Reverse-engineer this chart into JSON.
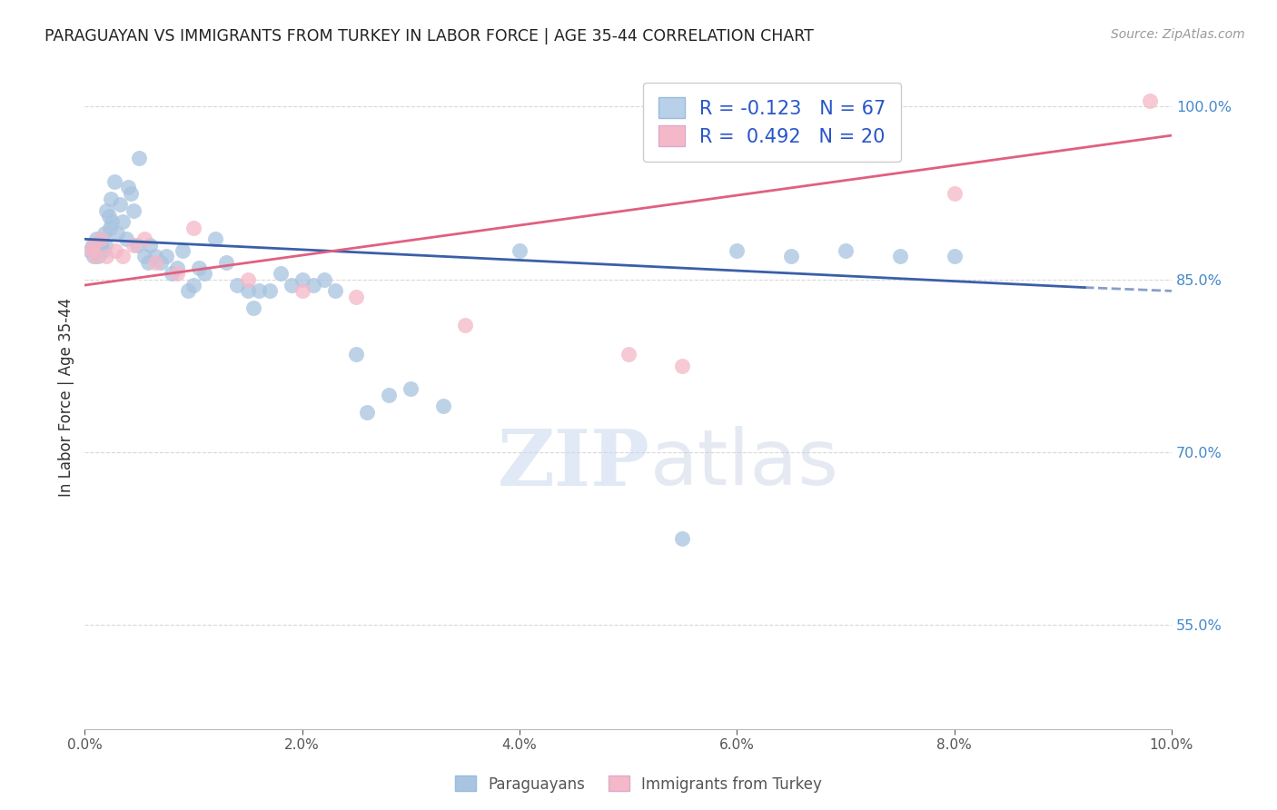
{
  "title": "PARAGUAYAN VS IMMIGRANTS FROM TURKEY IN LABOR FORCE | AGE 35-44 CORRELATION CHART",
  "source": "Source: ZipAtlas.com",
  "ylabel": "In Labor Force | Age 35-44",
  "x_min": 0.0,
  "x_max": 10.0,
  "y_min": 46.0,
  "y_max": 103.5,
  "y_ticks": [
    55.0,
    70.0,
    85.0,
    100.0
  ],
  "x_ticks": [
    0.0,
    2.0,
    4.0,
    6.0,
    8.0,
    10.0
  ],
  "paraguayan_color": "#a8c4e0",
  "turkey_color": "#f4b8c8",
  "blue_line_color": "#3a5fa8",
  "pink_line_color": "#e06080",
  "legend_blue_fill": "#b8d0e8",
  "legend_pink_fill": "#f4b8c8",
  "legend_text_color": "#2855c8",
  "legend_R_blue": "-0.123",
  "legend_N_blue": "67",
  "legend_R_pink": "0.492",
  "legend_N_pink": "20",
  "blue_line_x0": 0.0,
  "blue_line_x1": 9.2,
  "blue_line_y0": 88.5,
  "blue_line_y1": 84.3,
  "blue_dash_x0": 9.2,
  "blue_dash_x1": 10.0,
  "blue_dash_y0": 84.3,
  "blue_dash_y1": 84.0,
  "pink_line_x0": 0.0,
  "pink_line_x1": 10.0,
  "pink_line_y0": 84.5,
  "pink_line_y1": 97.5,
  "paraguayan_x": [
    0.05,
    0.07,
    0.08,
    0.09,
    0.1,
    0.11,
    0.12,
    0.13,
    0.14,
    0.15,
    0.16,
    0.17,
    0.18,
    0.19,
    0.2,
    0.22,
    0.23,
    0.24,
    0.25,
    0.27,
    0.3,
    0.32,
    0.35,
    0.38,
    0.4,
    0.42,
    0.45,
    0.48,
    0.5,
    0.55,
    0.58,
    0.6,
    0.65,
    0.7,
    0.75,
    0.8,
    0.85,
    0.9,
    0.95,
    1.0,
    1.05,
    1.1,
    1.2,
    1.3,
    1.4,
    1.5,
    1.55,
    1.6,
    1.7,
    1.8,
    1.9,
    2.0,
    2.1,
    2.2,
    2.3,
    2.5,
    2.6,
    2.8,
    3.0,
    3.3,
    4.0,
    5.5,
    6.0,
    6.5,
    7.0,
    7.5,
    8.0
  ],
  "paraguayan_y": [
    87.5,
    88.0,
    87.0,
    88.0,
    87.5,
    88.5,
    87.0,
    88.0,
    87.5,
    88.0,
    88.5,
    87.5,
    89.0,
    88.0,
    91.0,
    90.5,
    89.5,
    92.0,
    90.0,
    93.5,
    89.0,
    91.5,
    90.0,
    88.5,
    93.0,
    92.5,
    91.0,
    88.0,
    95.5,
    87.0,
    86.5,
    88.0,
    87.0,
    86.5,
    87.0,
    85.5,
    86.0,
    87.5,
    84.0,
    84.5,
    86.0,
    85.5,
    88.5,
    86.5,
    84.5,
    84.0,
    82.5,
    84.0,
    84.0,
    85.5,
    84.5,
    85.0,
    84.5,
    85.0,
    84.0,
    78.5,
    73.5,
    75.0,
    75.5,
    74.0,
    87.5,
    62.5,
    87.5,
    87.0,
    87.5,
    87.0,
    87.0
  ],
  "turkey_x": [
    0.06,
    0.08,
    0.1,
    0.15,
    0.2,
    0.28,
    0.35,
    0.45,
    0.55,
    0.65,
    0.85,
    1.0,
    1.5,
    2.0,
    2.5,
    3.5,
    5.0,
    5.5,
    8.0,
    9.8
  ],
  "turkey_y": [
    87.5,
    88.0,
    87.0,
    88.5,
    87.0,
    87.5,
    87.0,
    88.0,
    88.5,
    86.5,
    85.5,
    89.5,
    85.0,
    84.0,
    83.5,
    81.0,
    78.5,
    77.5,
    92.5,
    100.5
  ],
  "watermark_zip": "ZIP",
  "watermark_atlas": "atlas",
  "background_color": "#ffffff",
  "grid_color": "#d8d8d8",
  "title_color": "#222222",
  "axis_label_color": "#333333",
  "right_axis_color": "#4488cc"
}
